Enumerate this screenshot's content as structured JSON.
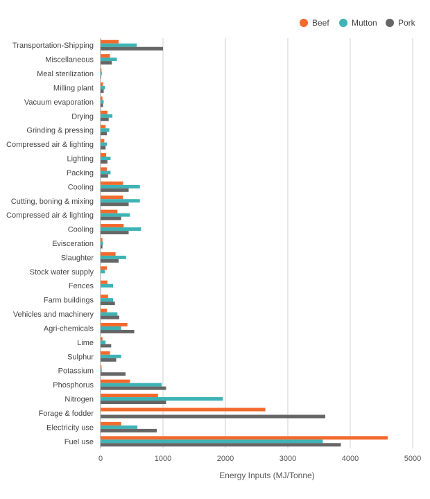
{
  "chart_data": {
    "type": "bar",
    "orientation": "horizontal",
    "title": "",
    "xlabel": "Energy Inputs (MJ/Tonne)",
    "ylabel": "",
    "xlim": [
      0,
      5000
    ],
    "xticks": [
      "0",
      "1000",
      "2000",
      "3000",
      "4000",
      "5000"
    ],
    "grid": true,
    "legend_position": "top-right",
    "categories": [
      "Transportation-Shipping",
      "Miscellaneous",
      "Meal sterilization",
      "Milling plant",
      "Vacuum evaporation",
      "Drying",
      "Grinding & pressing",
      "Compressed air & lighting",
      "Lighting",
      "Packing",
      "Cooling",
      "Cutting, boning & mixing",
      "Compressed air & lighting",
      "Cooling",
      "Evisceration",
      "Slaughter",
      "Stock water supply",
      "Fences",
      "Farm buildings",
      "Vehicles and machinery",
      "Agri-chemicals",
      "Lime",
      "Sulphur",
      "Potassium",
      "Phosphorus",
      "Nitrogen",
      "Forage & fodder",
      "Electricity use",
      "Fuel use"
    ],
    "series": [
      {
        "name": "Beef",
        "color": "#f26a2c",
        "values": [
          290,
          150,
          15,
          40,
          30,
          110,
          80,
          60,
          90,
          100,
          360,
          360,
          270,
          370,
          30,
          240,
          100,
          110,
          120,
          100,
          430,
          30,
          150,
          15,
          470,
          920,
          2640,
          330,
          4600
        ]
      },
      {
        "name": "Mutton",
        "color": "#3eb3b5",
        "values": [
          580,
          260,
          20,
          70,
          50,
          190,
          140,
          100,
          160,
          160,
          630,
          630,
          470,
          650,
          40,
          410,
          70,
          200,
          200,
          270,
          330,
          80,
          330,
          20,
          980,
          1960,
          0,
          590,
          3560
        ]
      },
      {
        "name": "Pork",
        "color": "#666666",
        "values": [
          1000,
          180,
          10,
          50,
          40,
          130,
          100,
          80,
          110,
          120,
          450,
          450,
          330,
          450,
          30,
          290,
          0,
          0,
          230,
          300,
          540,
          170,
          250,
          400,
          1050,
          1050,
          3600,
          900,
          3850
        ]
      }
    ]
  }
}
